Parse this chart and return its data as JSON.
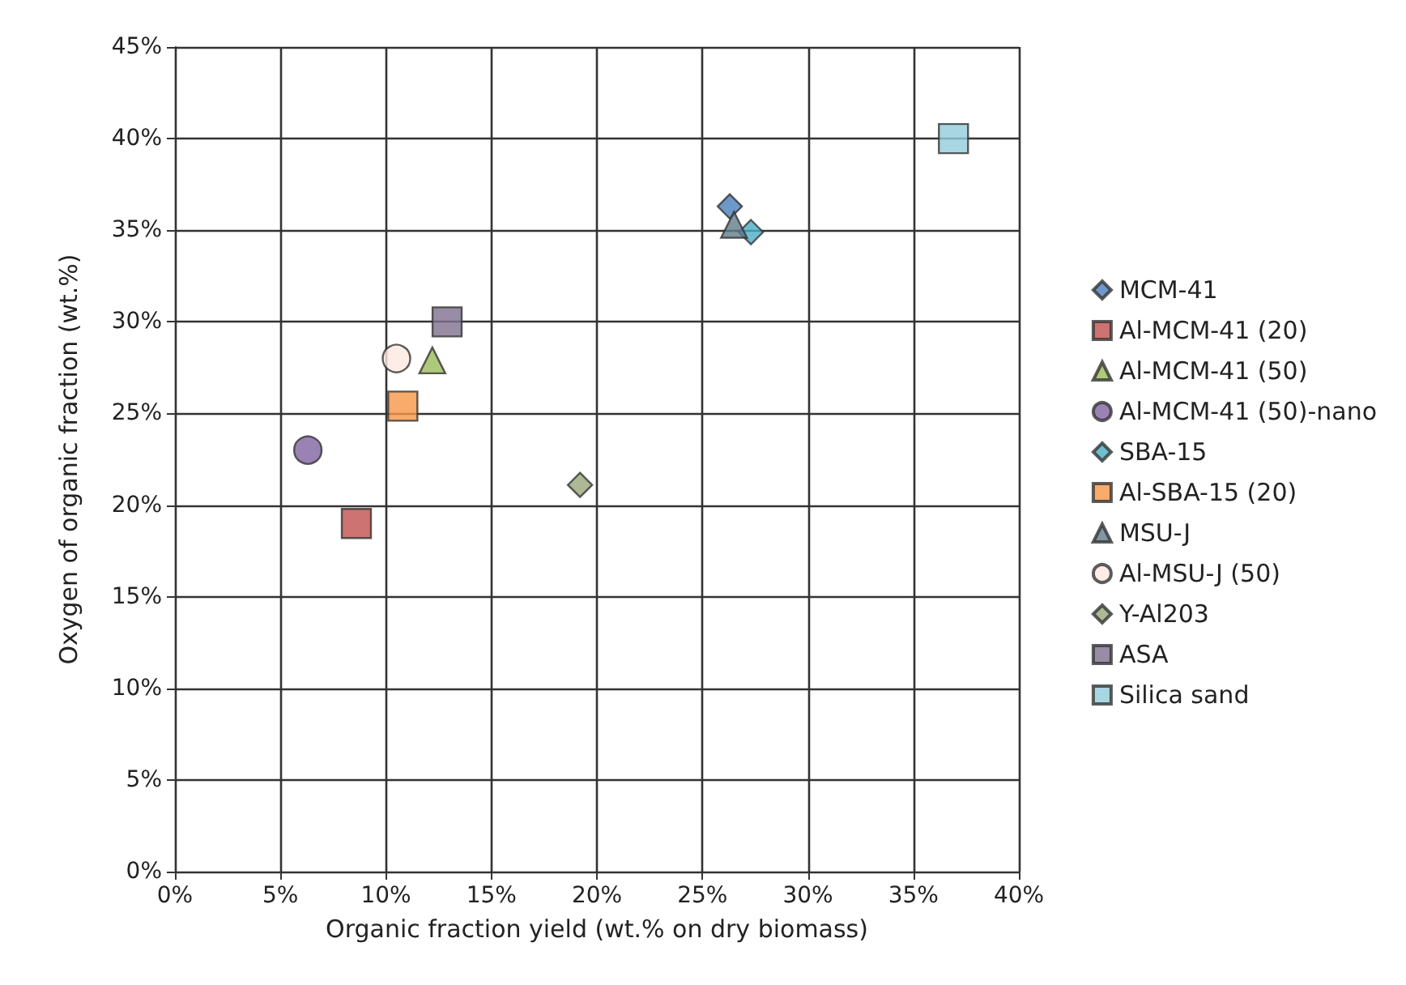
{
  "chart_data": {
    "type": "scatter",
    "xlabel": "Organic fraction yield (wt.% on dry biomass)",
    "ylabel": "Oxygen of organic fraction (wt.%)",
    "xlim": [
      0,
      40
    ],
    "ylim": [
      0,
      45
    ],
    "xticks": [
      {
        "value": 0,
        "label": "0%"
      },
      {
        "value": 5,
        "label": "5%"
      },
      {
        "value": 10,
        "label": "10%"
      },
      {
        "value": 15,
        "label": "15%"
      },
      {
        "value": 20,
        "label": "20%"
      },
      {
        "value": 25,
        "label": "25%"
      },
      {
        "value": 30,
        "label": "30%"
      },
      {
        "value": 35,
        "label": "35%"
      },
      {
        "value": 40,
        "label": "40%"
      }
    ],
    "yticks": [
      {
        "value": 0,
        "label": "0%"
      },
      {
        "value": 5,
        "label": "5%"
      },
      {
        "value": 10,
        "label": "10%"
      },
      {
        "value": 15,
        "label": "15%"
      },
      {
        "value": 20,
        "label": "20%"
      },
      {
        "value": 25,
        "label": "25%"
      },
      {
        "value": 30,
        "label": "30%"
      },
      {
        "value": 35,
        "label": "35%"
      },
      {
        "value": 40,
        "label": "40%"
      },
      {
        "value": 45,
        "label": "45%"
      }
    ],
    "grid": true,
    "legend": "right",
    "series": [
      {
        "name": "MCM-41",
        "color": "#4a7ebb",
        "marker": "diamond",
        "x": [
          26.3
        ],
        "values": [
          36.3
        ]
      },
      {
        "name": "Al-MCM-41 (20)",
        "color": "#c0504d",
        "marker": "square",
        "x": [
          8.6
        ],
        "values": [
          19.0
        ]
      },
      {
        "name": "Al-MCM-41 (50)",
        "color": "#9bbb59",
        "marker": "triangle",
        "x": [
          12.2
        ],
        "values": [
          27.9
        ]
      },
      {
        "name": "Al-MCM-41 (50)-nano",
        "color": "#8064a2",
        "marker": "circle",
        "x": [
          6.3
        ],
        "values": [
          23.0
        ]
      },
      {
        "name": "SBA-15",
        "color": "#4bacc6",
        "marker": "diamond",
        "x": [
          27.3
        ],
        "values": [
          34.9
        ]
      },
      {
        "name": "Al-SBA-15 (20)",
        "color": "#f79646",
        "marker": "square",
        "x": [
          10.8
        ],
        "values": [
          25.4
        ]
      },
      {
        "name": "MSU-J",
        "color": "#607d8b",
        "marker": "triangle",
        "x": [
          26.5
        ],
        "values": [
          35.3
        ]
      },
      {
        "name": "Al-MSU-J (50)",
        "color": "#fde9e0",
        "marker": "circle",
        "x": [
          10.5
        ],
        "values": [
          28.0
        ]
      },
      {
        "name": "Y-Al203",
        "color": "#98a67a",
        "marker": "diamond",
        "x": [
          19.2
        ],
        "values": [
          21.1
        ]
      },
      {
        "name": "ASA",
        "color": "#7f6f8f",
        "marker": "square",
        "x": [
          12.9
        ],
        "values": [
          30.0
        ]
      },
      {
        "name": "Silica sand",
        "color": "#92cddc",
        "marker": "square",
        "x": [
          36.9
        ],
        "values": [
          40.0
        ]
      }
    ]
  }
}
